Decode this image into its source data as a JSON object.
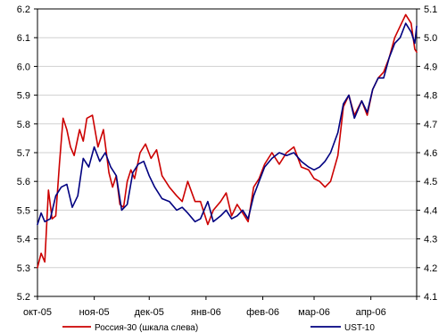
{
  "colors": {
    "background": "#ffffff",
    "grid": "#d0d0d0",
    "axis": "#000000"
  },
  "chart_data": {
    "type": "line",
    "title": "",
    "grid": true,
    "legend_placement": "bottom",
    "x_ticks": [
      "окт-05",
      "ноя-05",
      "дек-05",
      "янв-06",
      "фев-06",
      "мар-06",
      "апр-06"
    ],
    "x_range": [
      "2005-10-01",
      "2006-04-26"
    ],
    "ylim_left": [
      5.2,
      6.2
    ],
    "ylim_right": [
      4.1,
      5.1
    ],
    "y_ticks_left": [
      "5.2",
      "5.3",
      "5.4",
      "5.5",
      "5.6",
      "5.7",
      "5.8",
      "5.9",
      "6.0",
      "6.1",
      "6.2"
    ],
    "y_ticks_right": [
      "4.1",
      "4.2",
      "4.3",
      "4.4",
      "4.5",
      "4.6",
      "4.7",
      "4.8",
      "4.9",
      "5.0",
      "5.1"
    ],
    "series": [
      {
        "name": "Россия-30 (шкала слева)",
        "axis": "left",
        "color": "#cc0000",
        "x": [
          "2005-10-01",
          "2005-10-03",
          "2005-10-05",
          "2005-10-07",
          "2005-10-09",
          "2005-10-11",
          "2005-10-13",
          "2005-10-15",
          "2005-10-17",
          "2005-10-19",
          "2005-10-21",
          "2005-10-24",
          "2005-10-26",
          "2005-10-28",
          "2005-10-31",
          "2005-11-03",
          "2005-11-06",
          "2005-11-09",
          "2005-11-11",
          "2005-11-13",
          "2005-11-15",
          "2005-11-17",
          "2005-11-19",
          "2005-11-21",
          "2005-11-23",
          "2005-11-26",
          "2005-11-29",
          "2005-12-02",
          "2005-12-05",
          "2005-12-08",
          "2005-12-12",
          "2005-12-16",
          "2005-12-19",
          "2005-12-22",
          "2005-12-26",
          "2005-12-29",
          "2006-01-02",
          "2006-01-05",
          "2006-01-09",
          "2006-01-12",
          "2006-01-15",
          "2006-01-18",
          "2006-01-21",
          "2006-01-24",
          "2006-01-27",
          "2006-01-30",
          "2006-02-02",
          "2006-02-06",
          "2006-02-10",
          "2006-02-14",
          "2006-02-18",
          "2006-02-22",
          "2006-02-26",
          "2006-03-01",
          "2006-03-04",
          "2006-03-07",
          "2006-03-10",
          "2006-03-14",
          "2006-03-17",
          "2006-03-20",
          "2006-03-23",
          "2006-03-27",
          "2006-03-30",
          "2006-04-02",
          "2006-04-05",
          "2006-04-08",
          "2006-04-11",
          "2006-04-14",
          "2006-04-17",
          "2006-04-20",
          "2006-04-23",
          "2006-04-25",
          "2006-04-26"
        ],
        "values": [
          5.3,
          5.35,
          5.32,
          5.57,
          5.47,
          5.48,
          5.66,
          5.82,
          5.78,
          5.72,
          5.69,
          5.78,
          5.74,
          5.82,
          5.83,
          5.72,
          5.78,
          5.63,
          5.58,
          5.62,
          5.52,
          5.51,
          5.6,
          5.64,
          5.61,
          5.7,
          5.73,
          5.68,
          5.71,
          5.62,
          5.58,
          5.55,
          5.53,
          5.6,
          5.53,
          5.53,
          5.45,
          5.5,
          5.53,
          5.56,
          5.48,
          5.52,
          5.49,
          5.46,
          5.58,
          5.61,
          5.66,
          5.7,
          5.66,
          5.7,
          5.72,
          5.65,
          5.64,
          5.61,
          5.6,
          5.58,
          5.6,
          5.69,
          5.86,
          5.9,
          5.83,
          5.88,
          5.83,
          5.92,
          5.96,
          5.98,
          6.03,
          6.1,
          6.14,
          6.18,
          6.15,
          6.06,
          6.05
        ]
      },
      {
        "name": "UST-10",
        "axis": "right",
        "color": "#000080",
        "x": [
          "2005-10-01",
          "2005-10-03",
          "2005-10-05",
          "2005-10-08",
          "2005-10-11",
          "2005-10-14",
          "2005-10-17",
          "2005-10-20",
          "2005-10-23",
          "2005-10-26",
          "2005-10-29",
          "2005-11-01",
          "2005-11-04",
          "2005-11-07",
          "2005-11-10",
          "2005-11-13",
          "2005-11-16",
          "2005-11-19",
          "2005-11-22",
          "2005-11-25",
          "2005-11-28",
          "2005-12-01",
          "2005-12-04",
          "2005-12-08",
          "2005-12-12",
          "2005-12-16",
          "2005-12-19",
          "2005-12-22",
          "2005-12-26",
          "2005-12-29",
          "2006-01-02",
          "2006-01-05",
          "2006-01-09",
          "2006-01-12",
          "2006-01-15",
          "2006-01-18",
          "2006-01-21",
          "2006-01-24",
          "2006-01-27",
          "2006-01-30",
          "2006-02-02",
          "2006-02-06",
          "2006-02-10",
          "2006-02-14",
          "2006-02-18",
          "2006-02-22",
          "2006-02-26",
          "2006-03-01",
          "2006-03-04",
          "2006-03-07",
          "2006-03-10",
          "2006-03-14",
          "2006-03-17",
          "2006-03-20",
          "2006-03-23",
          "2006-03-27",
          "2006-03-30",
          "2006-04-02",
          "2006-04-05",
          "2006-04-08",
          "2006-04-11",
          "2006-04-14",
          "2006-04-17",
          "2006-04-20",
          "2006-04-23",
          "2006-04-25",
          "2006-04-26"
        ],
        "values": [
          4.35,
          4.39,
          4.36,
          4.37,
          4.45,
          4.48,
          4.49,
          4.41,
          4.45,
          4.58,
          4.55,
          4.62,
          4.57,
          4.6,
          4.55,
          4.52,
          4.4,
          4.42,
          4.53,
          4.56,
          4.57,
          4.52,
          4.48,
          4.44,
          4.43,
          4.4,
          4.41,
          4.39,
          4.36,
          4.37,
          4.43,
          4.36,
          4.38,
          4.4,
          4.37,
          4.38,
          4.4,
          4.37,
          4.45,
          4.5,
          4.55,
          4.58,
          4.6,
          4.59,
          4.6,
          4.57,
          4.55,
          4.54,
          4.55,
          4.57,
          4.6,
          4.67,
          4.77,
          4.8,
          4.72,
          4.78,
          4.74,
          4.82,
          4.86,
          4.86,
          4.93,
          4.98,
          5.0,
          5.05,
          5.02,
          4.98,
          5.04
        ]
      }
    ]
  }
}
